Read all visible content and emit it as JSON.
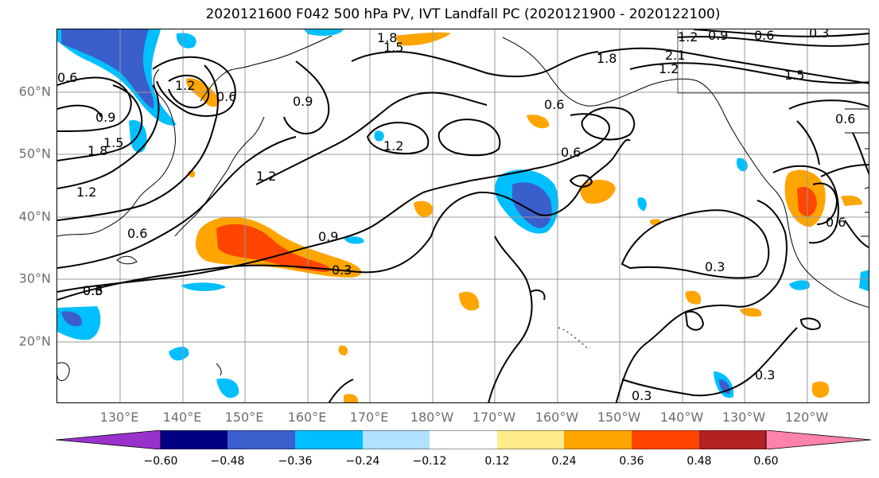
{
  "title": "2020121600 F042 500 hPa PV, IVT Landfall PC (2020121900 - 2020122100)",
  "latitude_labels": [
    "60°N",
    "50°N",
    "40°N",
    "30°N",
    "20°N"
  ],
  "longitude_labels": [
    "130°E",
    "140°E",
    "150°E",
    "160°E",
    "170°E",
    "180°W",
    "170°W",
    "160°W",
    "150°W",
    "140°W",
    "130°W",
    "120°W"
  ],
  "colorbar": {
    "tick_labels": [
      "−0.60",
      "−0.48",
      "−0.36",
      "−0.24",
      "−0.12",
      "0.12",
      "0.24",
      "0.36",
      "0.48",
      "0.60"
    ],
    "colors": [
      "#9932cc",
      "#000080",
      "#3a5fcd",
      "#00bfff",
      "#b0e2ff",
      "#ffffff",
      "#ffec8b",
      "#ffa500",
      "#ff4500",
      "#b22222",
      "#ff82ab"
    ],
    "extend": "both"
  },
  "contour_labels": {
    "c1": "1.8",
    "c2": "1.5",
    "c3": "1.2",
    "c4": "0.6",
    "c5": "0.9",
    "c6": "0.3",
    "c7": "1.8",
    "c8": "2.1",
    "c9": "1.2",
    "c10": "1.5",
    "c11": "0.6",
    "c12": "1.2",
    "c13": "0.9",
    "c14": "1.8",
    "c15": "1.5",
    "c16": "1.2",
    "c17": "0.6",
    "c18": "0.6",
    "c19": "1.2",
    "c20": "0.9",
    "c21": "0.3",
    "c22": "0.6",
    "c23": "0.3",
    "c24": "0.3",
    "c25": "0.3",
    "c26": "0.6",
    "c27": "1.2",
    "c28": "0.6",
    "c29": "0.9",
    "c30": "0.6",
    "c31": "0.3",
    "c32": "0.6"
  }
}
